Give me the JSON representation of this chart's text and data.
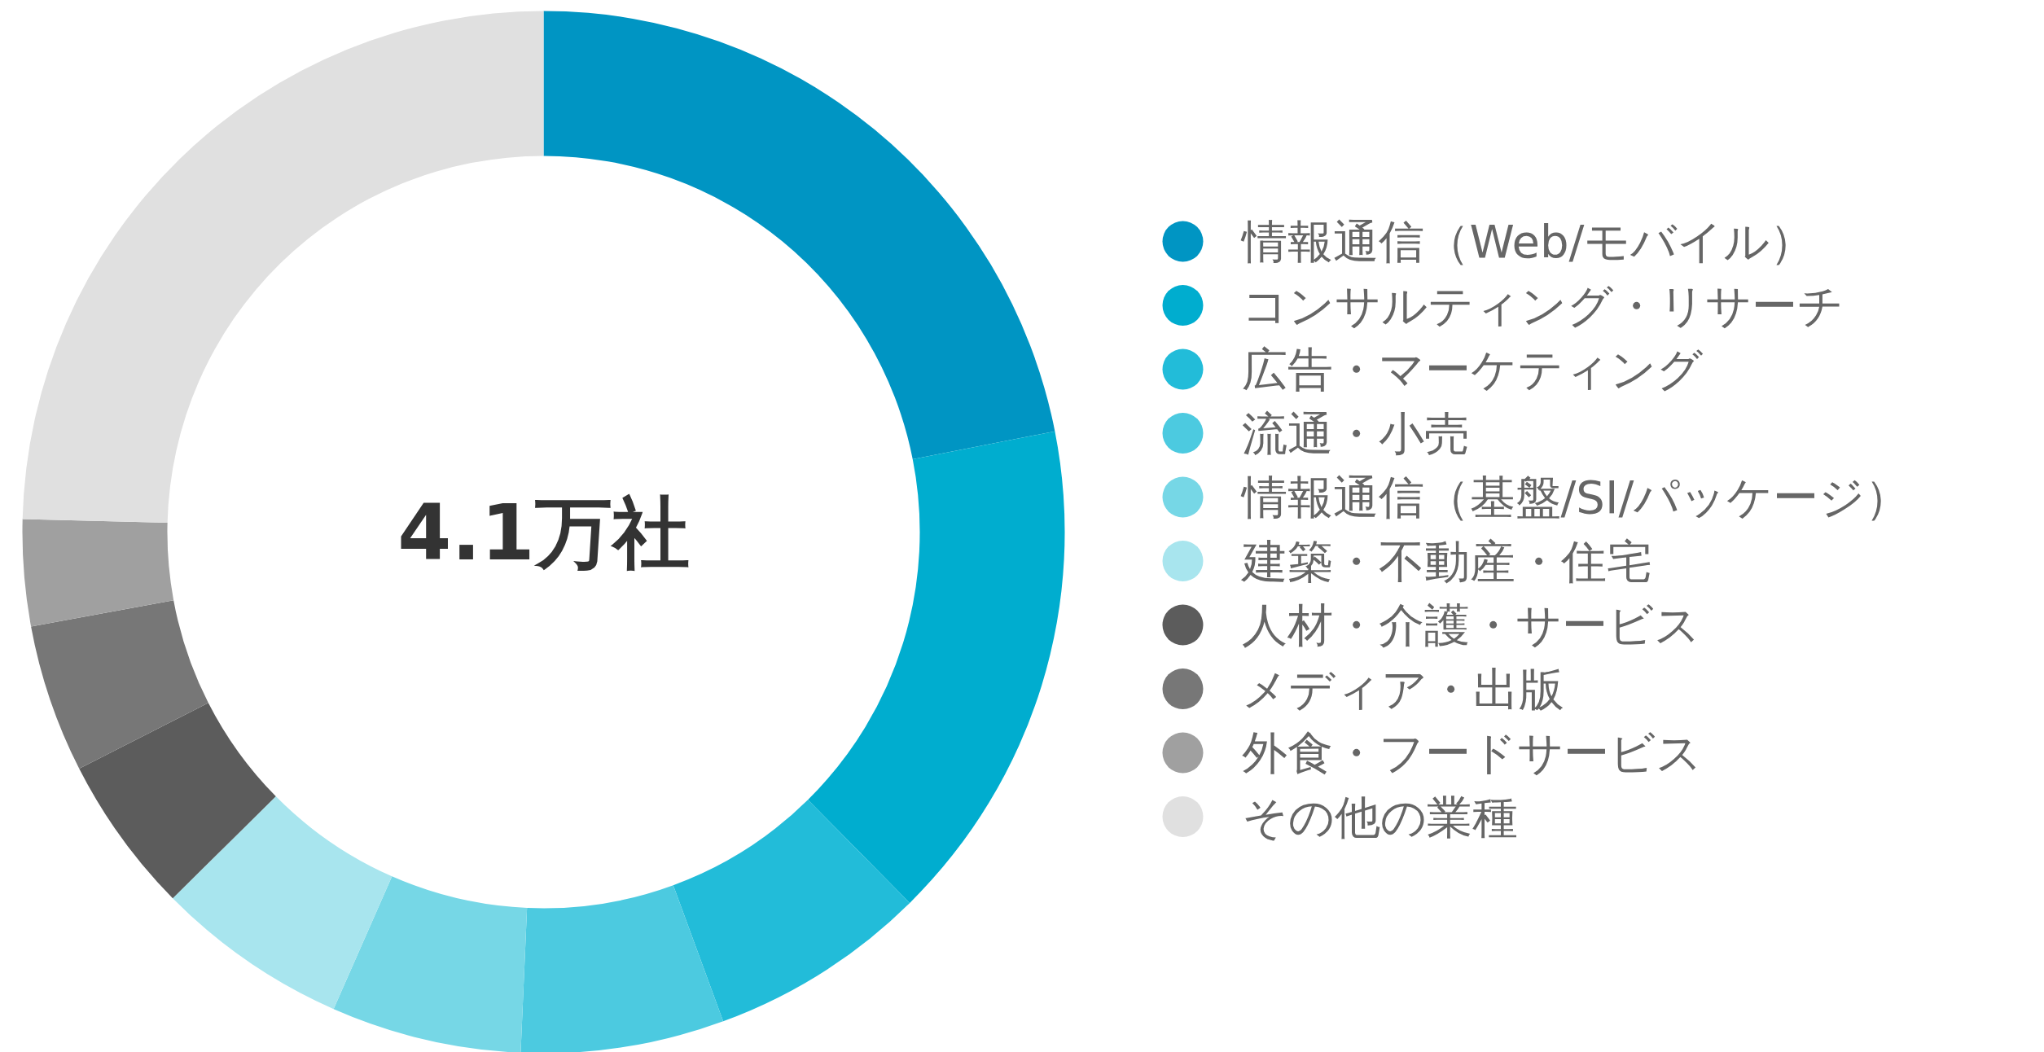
{
  "chart_data": {
    "type": "donut",
    "categories": [
      "情報通信（Web/モバイル）",
      "コンサルティング・リサーチ",
      "広告・マーケティング",
      "流通・小売",
      "情報通信（基盤/SI/パッケージ）",
      "建築・不動産・住宅",
      "人材・介護・サービス",
      "メディア・出版",
      "外食・フードサービス",
      "その他の業種"
    ],
    "values": [
      21.9,
      15.7,
      6.8,
      6.3,
      5.9,
      6.0,
      4.9,
      4.6,
      3.3,
      24.6
    ],
    "colors": [
      "#0095c3",
      "#00adcf",
      "#22bcd9",
      "#4ccae0",
      "#76d7e6",
      "#a8e5ee",
      "#5c5c5c",
      "#777777",
      "#a0a0a0",
      "#e0e0e0"
    ],
    "annotations": [
      "4.1万社"
    ],
    "legend": "right"
  }
}
